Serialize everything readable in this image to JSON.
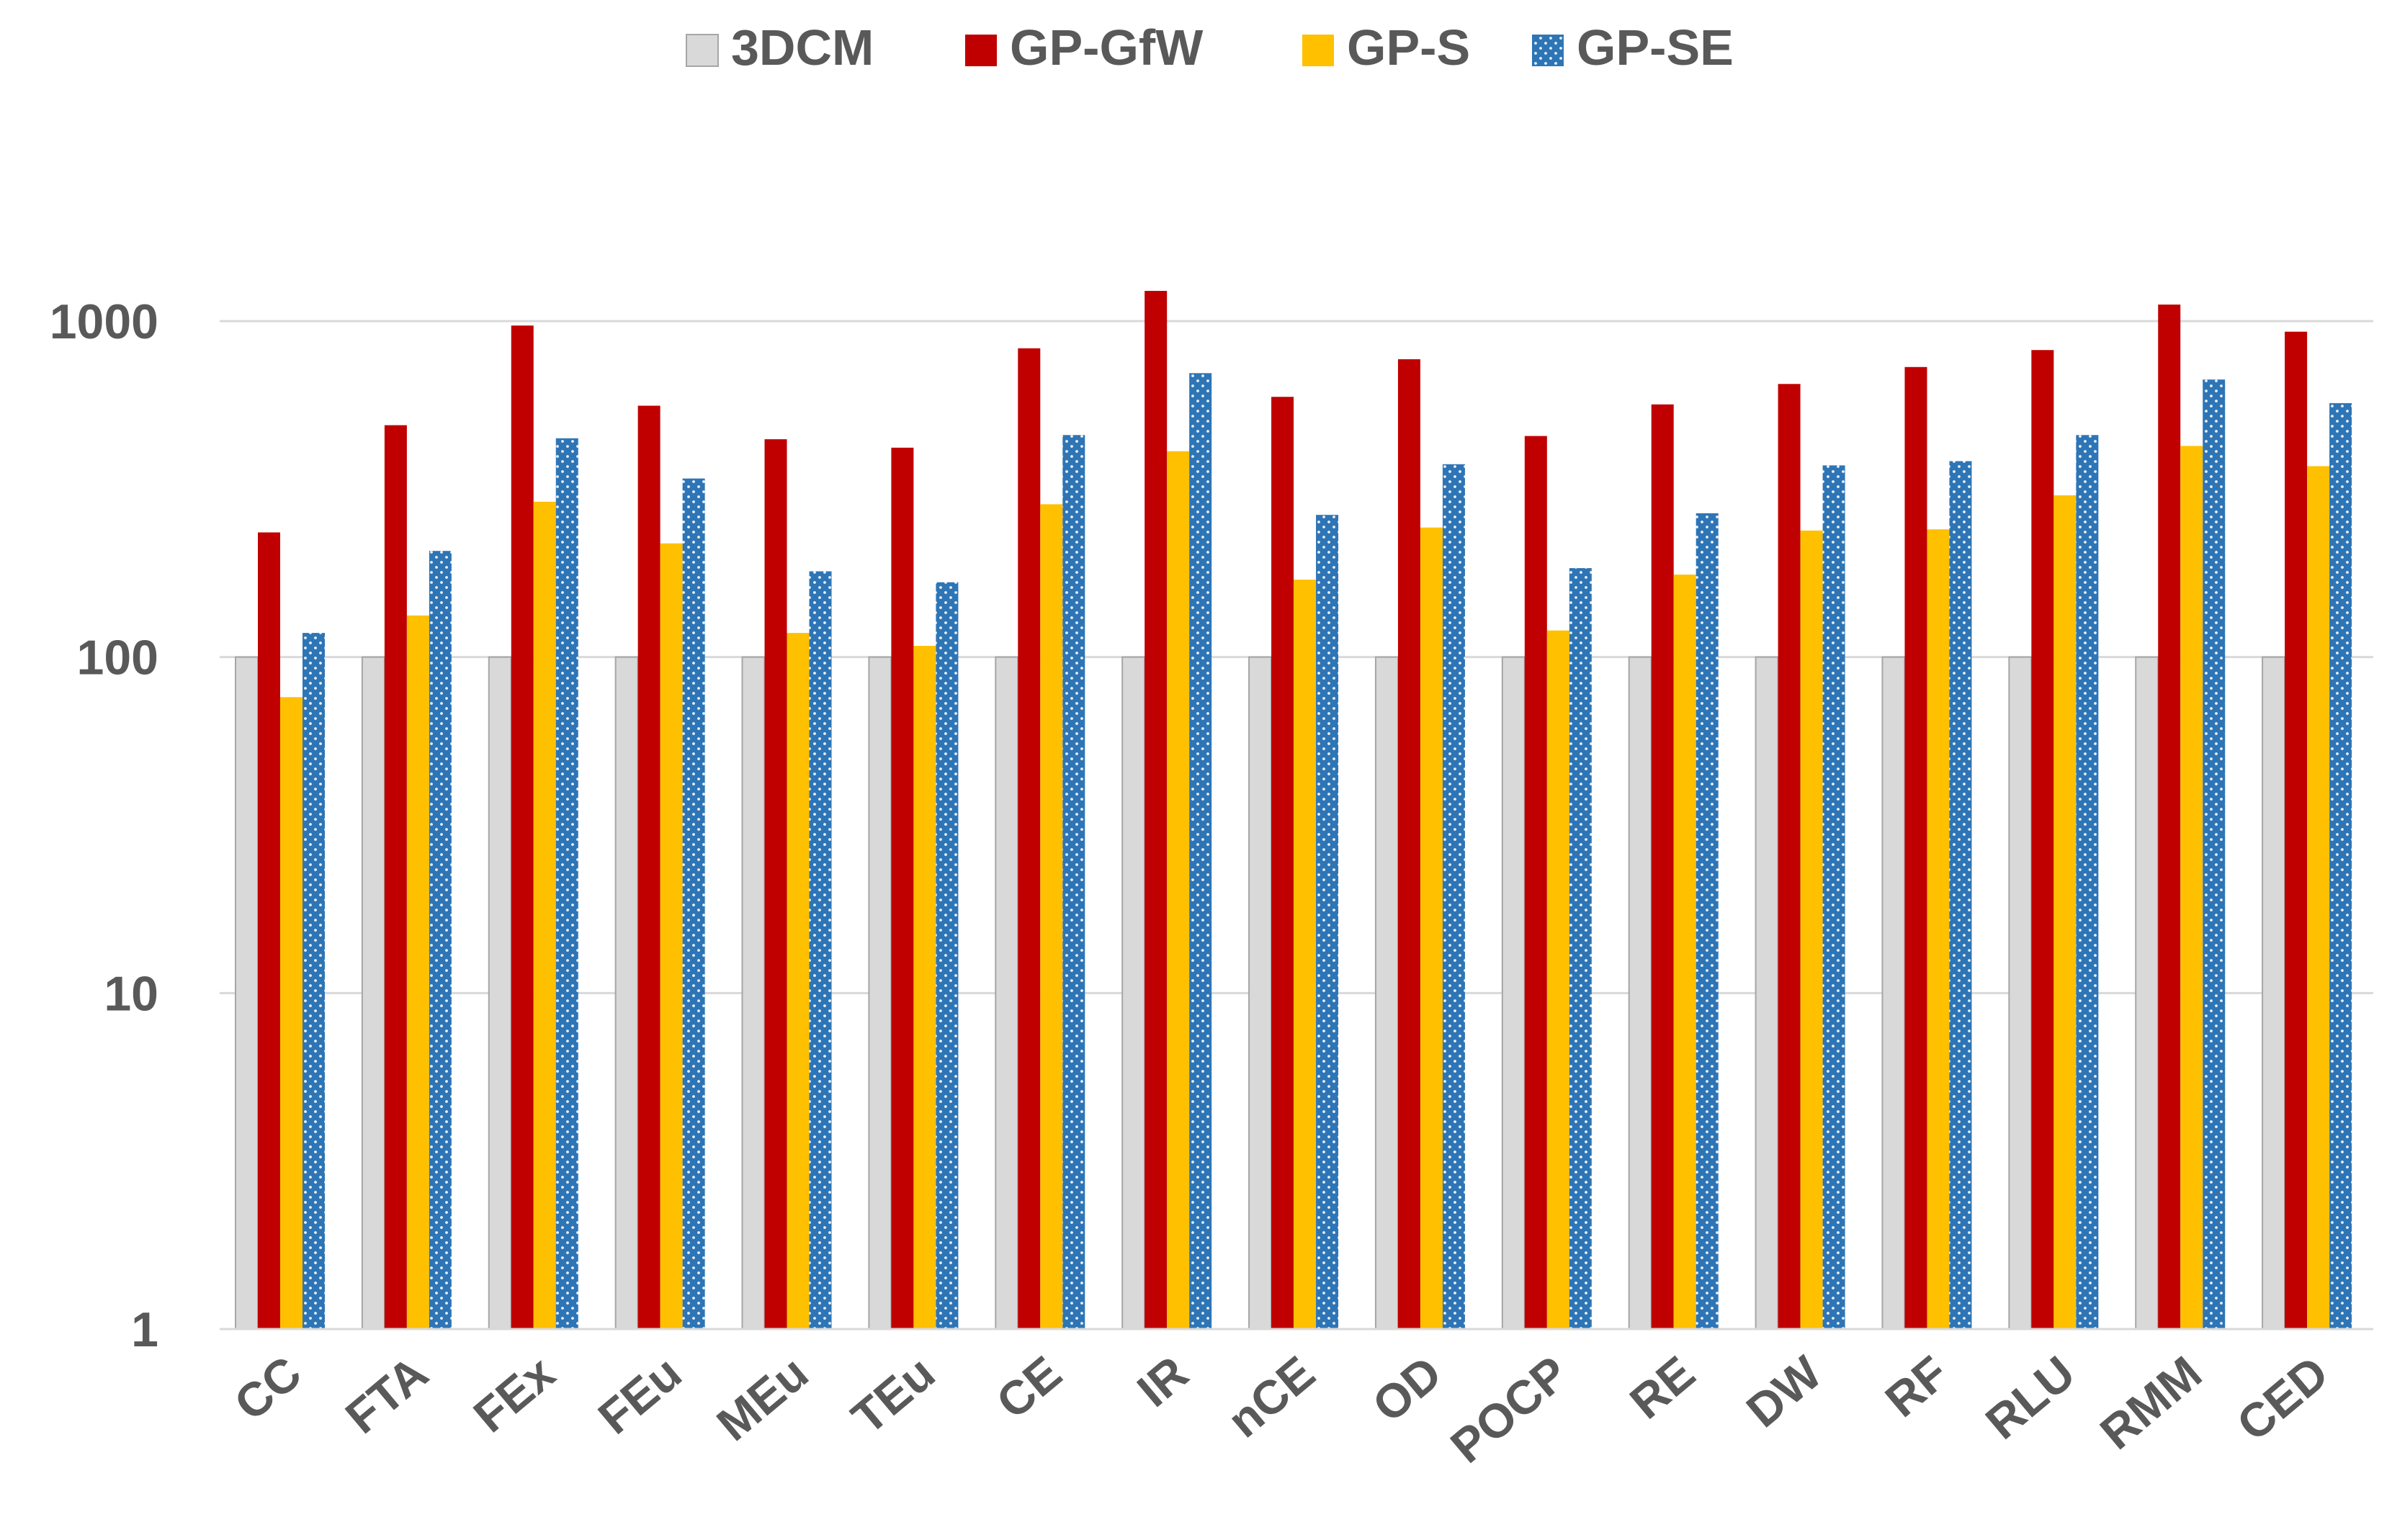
{
  "chart_data": {
    "type": "bar",
    "title": "",
    "xlabel": "",
    "ylabel": "",
    "yscale": "log",
    "ylim": [
      1,
      1000
    ],
    "yticks": [
      1,
      10,
      100,
      1000
    ],
    "ytick_labels": [
      "1",
      "10",
      "100",
      "1000"
    ],
    "grid": "horizontal",
    "legend_position": "top-center",
    "categories": [
      "CC",
      "FTA",
      "FEx",
      "FEu",
      "MEu",
      "TEu",
      "CE",
      "IR",
      "nCE",
      "OD",
      "POCP",
      "RE",
      "DW",
      "RF",
      "RLU",
      "RMM",
      "CED"
    ],
    "series": [
      {
        "name": "3DCM",
        "color": "#d9d9d9",
        "pattern": "solid",
        "values": [
          100,
          100,
          100,
          100,
          100,
          100,
          100,
          100,
          100,
          100,
          100,
          100,
          100,
          100,
          100,
          100,
          100
        ]
      },
      {
        "name": "GP-GfW",
        "color": "#c00000",
        "pattern": "solid",
        "values": [
          235,
          490,
          970,
          560,
          445,
          420,
          830,
          1230,
          595,
          770,
          455,
          565,
          650,
          730,
          820,
          1120,
          930
        ]
      },
      {
        "name": "GP-S",
        "color": "#ffc000",
        "pattern": "solid",
        "values": [
          76,
          133,
          290,
          218,
          118,
          108,
          285,
          410,
          170,
          243,
          120,
          176,
          238,
          240,
          303,
          425,
          370
        ]
      },
      {
        "name": "GP-SE",
        "color": "#2e75b6",
        "pattern": "dotted",
        "values": [
          118,
          207,
          448,
          340,
          180,
          167,
          458,
          700,
          265,
          375,
          184,
          268,
          372,
          383,
          458,
          670,
          570
        ]
      }
    ]
  }
}
